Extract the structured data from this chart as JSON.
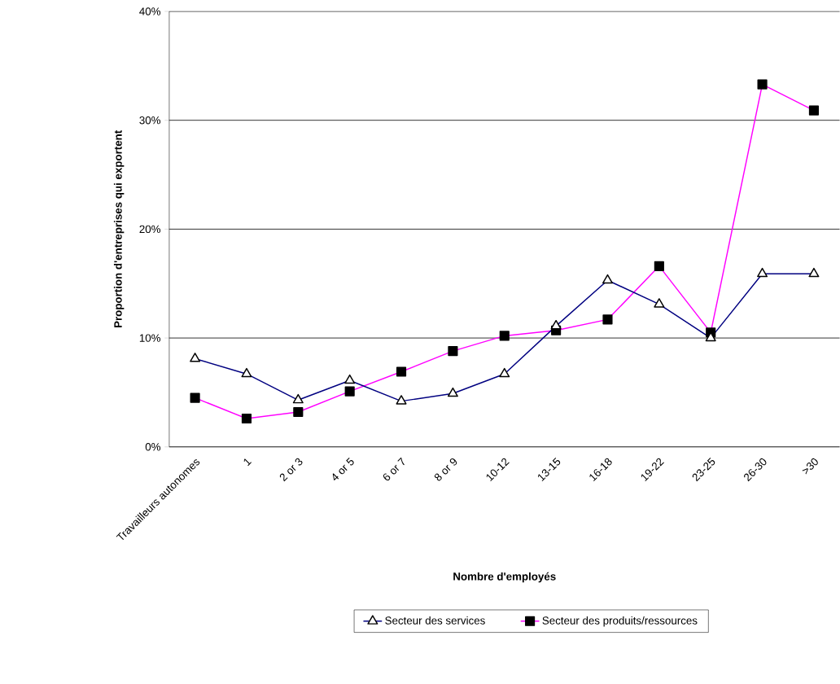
{
  "chart_data": {
    "type": "line",
    "xlabel": "Nombre d'employés",
    "ylabel": "Proportion d'entreprises qui exportent",
    "categories": [
      "Travailleurs autonomes",
      "1",
      "2 or 3",
      "4 or 5",
      "6 or 7",
      "8 or 9",
      "10-12",
      "13-15",
      "16-18",
      "19-22",
      "23-25",
      "26-30",
      ">30"
    ],
    "series": [
      {
        "name": "Secteur des services",
        "color": "#000080",
        "marker": "triangle",
        "values": [
          8.1,
          6.7,
          4.3,
          6.1,
          4.2,
          4.9,
          6.7,
          11.1,
          15.3,
          13.1,
          10.0,
          15.9,
          15.9
        ]
      },
      {
        "name": "Secteur des produits/ressources",
        "color": "#ff00ff",
        "marker": "square",
        "values": [
          4.5,
          2.6,
          3.2,
          5.1,
          6.9,
          8.8,
          10.2,
          10.7,
          11.7,
          16.6,
          10.5,
          33.3,
          30.9
        ]
      }
    ],
    "ylim": [
      0,
      40
    ],
    "yticks": [
      {
        "value": 0,
        "label": "0%"
      },
      {
        "value": 10,
        "label": "10%"
      },
      {
        "value": 20,
        "label": "20%"
      },
      {
        "value": 30,
        "label": "30%"
      },
      {
        "value": 40,
        "label": "40%"
      }
    ],
    "grid": "y",
    "legend": "bottom"
  }
}
